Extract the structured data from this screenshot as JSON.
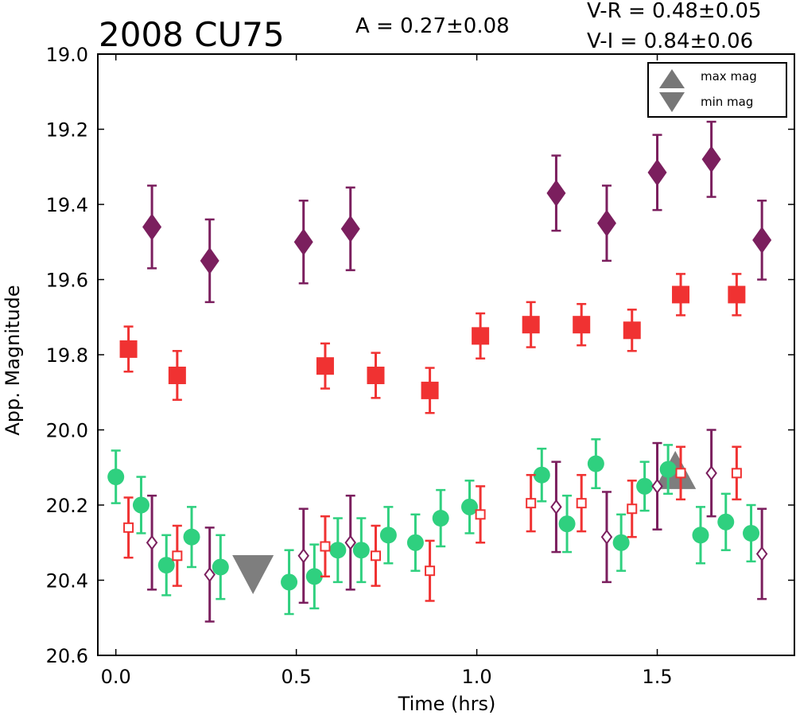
{
  "chart_data": {
    "type": "scatter",
    "title": "2008 CU75",
    "amplitude_label": "A  = 0.27±0.08",
    "color_labels": [
      "V-R = 0.48±0.05",
      "V-I  = 0.84±0.06"
    ],
    "xlabel": "Time (hrs)",
    "ylabel": "App. Magnitude",
    "xlim": [
      -0.05,
      1.88
    ],
    "ylim": [
      20.6,
      19.0
    ],
    "y_inverted": true,
    "grid": false,
    "xticks": [
      0.0,
      0.5,
      1.0,
      1.5
    ],
    "xtick_labels": [
      "0.0",
      "0.5",
      "1.0",
      "1.5"
    ],
    "yticks": [
      19.0,
      19.2,
      19.4,
      19.6,
      19.8,
      20.0,
      20.2,
      20.4,
      20.6
    ],
    "ytick_labels": [
      "19.0",
      "19.2",
      "19.4",
      "19.6",
      "19.8",
      "20.0",
      "20.2",
      "20.4",
      "20.6"
    ],
    "legend": {
      "placement": "top-right",
      "entries": [
        {
          "label": "max mag",
          "marker": "triangle-up",
          "color": "#777777"
        },
        {
          "label": "min mag",
          "marker": "triangle-down",
          "color": "#777777"
        }
      ]
    },
    "markers": [
      {
        "name": "max mag",
        "marker": "triangle-up",
        "color": "#777777",
        "x": 1.55,
        "y": 20.115
      },
      {
        "name": "min mag",
        "marker": "triangle-down",
        "color": "#777777",
        "x": 0.38,
        "y": 20.38
      }
    ],
    "series": [
      {
        "marker": "diamond-filled",
        "color": "#7b1f5e",
        "points": [
          {
            "x": 0.1,
            "y": 19.46,
            "err": 0.11
          },
          {
            "x": 0.26,
            "y": 19.55,
            "err": 0.11
          },
          {
            "x": 0.52,
            "y": 19.5,
            "err": 0.11
          },
          {
            "x": 0.65,
            "y": 19.465,
            "err": 0.11
          },
          {
            "x": 1.22,
            "y": 19.37,
            "err": 0.1
          },
          {
            "x": 1.36,
            "y": 19.45,
            "err": 0.1
          },
          {
            "x": 1.5,
            "y": 19.315,
            "err": 0.1
          },
          {
            "x": 1.65,
            "y": 19.28,
            "err": 0.1
          },
          {
            "x": 1.79,
            "y": 19.495,
            "err": 0.105
          }
        ]
      },
      {
        "marker": "square-filled",
        "color": "#f03232",
        "points": [
          {
            "x": 0.035,
            "y": 19.785,
            "err": 0.06
          },
          {
            "x": 0.17,
            "y": 19.855,
            "err": 0.065
          },
          {
            "x": 0.58,
            "y": 19.83,
            "err": 0.06
          },
          {
            "x": 0.72,
            "y": 19.855,
            "err": 0.06
          },
          {
            "x": 0.87,
            "y": 19.895,
            "err": 0.06
          },
          {
            "x": 1.01,
            "y": 19.75,
            "err": 0.06
          },
          {
            "x": 1.15,
            "y": 19.72,
            "err": 0.06
          },
          {
            "x": 1.29,
            "y": 19.72,
            "err": 0.055
          },
          {
            "x": 1.43,
            "y": 19.735,
            "err": 0.055
          },
          {
            "x": 1.565,
            "y": 19.64,
            "err": 0.055
          },
          {
            "x": 1.72,
            "y": 19.64,
            "err": 0.055
          }
        ]
      },
      {
        "marker": "circle-filled",
        "color": "#2fd07f",
        "points": [
          {
            "x": 0.0,
            "y": 20.125,
            "err": 0.07
          },
          {
            "x": 0.07,
            "y": 20.2,
            "err": 0.075
          },
          {
            "x": 0.14,
            "y": 20.36,
            "err": 0.08
          },
          {
            "x": 0.21,
            "y": 20.285,
            "err": 0.08
          },
          {
            "x": 0.29,
            "y": 20.365,
            "err": 0.085
          },
          {
            "x": 0.48,
            "y": 20.405,
            "err": 0.085
          },
          {
            "x": 0.55,
            "y": 20.39,
            "err": 0.085
          },
          {
            "x": 0.615,
            "y": 20.32,
            "err": 0.085
          },
          {
            "x": 0.68,
            "y": 20.32,
            "err": 0.085
          },
          {
            "x": 0.755,
            "y": 20.28,
            "err": 0.075
          },
          {
            "x": 0.83,
            "y": 20.3,
            "err": 0.075
          },
          {
            "x": 0.9,
            "y": 20.235,
            "err": 0.075
          },
          {
            "x": 0.98,
            "y": 20.205,
            "err": 0.07
          },
          {
            "x": 1.18,
            "y": 20.12,
            "err": 0.07
          },
          {
            "x": 1.25,
            "y": 20.25,
            "err": 0.075
          },
          {
            "x": 1.33,
            "y": 20.09,
            "err": 0.065
          },
          {
            "x": 1.4,
            "y": 20.3,
            "err": 0.075
          },
          {
            "x": 1.465,
            "y": 20.15,
            "err": 0.065
          },
          {
            "x": 1.53,
            "y": 20.105,
            "err": 0.065
          },
          {
            "x": 1.62,
            "y": 20.28,
            "err": 0.075
          },
          {
            "x": 1.69,
            "y": 20.245,
            "err": 0.075
          },
          {
            "x": 1.76,
            "y": 20.275,
            "err": 0.075
          }
        ]
      },
      {
        "marker": "square-open",
        "color": "#f03232",
        "points": [
          {
            "x": 0.035,
            "y": 20.26,
            "err": 0.08
          },
          {
            "x": 0.17,
            "y": 20.335,
            "err": 0.08
          },
          {
            "x": 0.58,
            "y": 20.31,
            "err": 0.08
          },
          {
            "x": 0.72,
            "y": 20.335,
            "err": 0.08
          },
          {
            "x": 0.87,
            "y": 20.375,
            "err": 0.08
          },
          {
            "x": 1.01,
            "y": 20.225,
            "err": 0.075
          },
          {
            "x": 1.15,
            "y": 20.195,
            "err": 0.075
          },
          {
            "x": 1.29,
            "y": 20.195,
            "err": 0.075
          },
          {
            "x": 1.43,
            "y": 20.21,
            "err": 0.075
          },
          {
            "x": 1.565,
            "y": 20.115,
            "err": 0.07
          },
          {
            "x": 1.72,
            "y": 20.115,
            "err": 0.07
          }
        ]
      },
      {
        "marker": "diamond-open",
        "color": "#7b1f5e",
        "points": [
          {
            "x": 0.1,
            "y": 20.3,
            "err": 0.125
          },
          {
            "x": 0.26,
            "y": 20.385,
            "err": 0.125
          },
          {
            "x": 0.52,
            "y": 20.335,
            "err": 0.125
          },
          {
            "x": 0.65,
            "y": 20.3,
            "err": 0.125
          },
          {
            "x": 1.22,
            "y": 20.205,
            "err": 0.12
          },
          {
            "x": 1.36,
            "y": 20.285,
            "err": 0.12
          },
          {
            "x": 1.5,
            "y": 20.15,
            "err": 0.115
          },
          {
            "x": 1.65,
            "y": 20.115,
            "err": 0.115
          },
          {
            "x": 1.79,
            "y": 20.33,
            "err": 0.12
          }
        ]
      }
    ]
  }
}
